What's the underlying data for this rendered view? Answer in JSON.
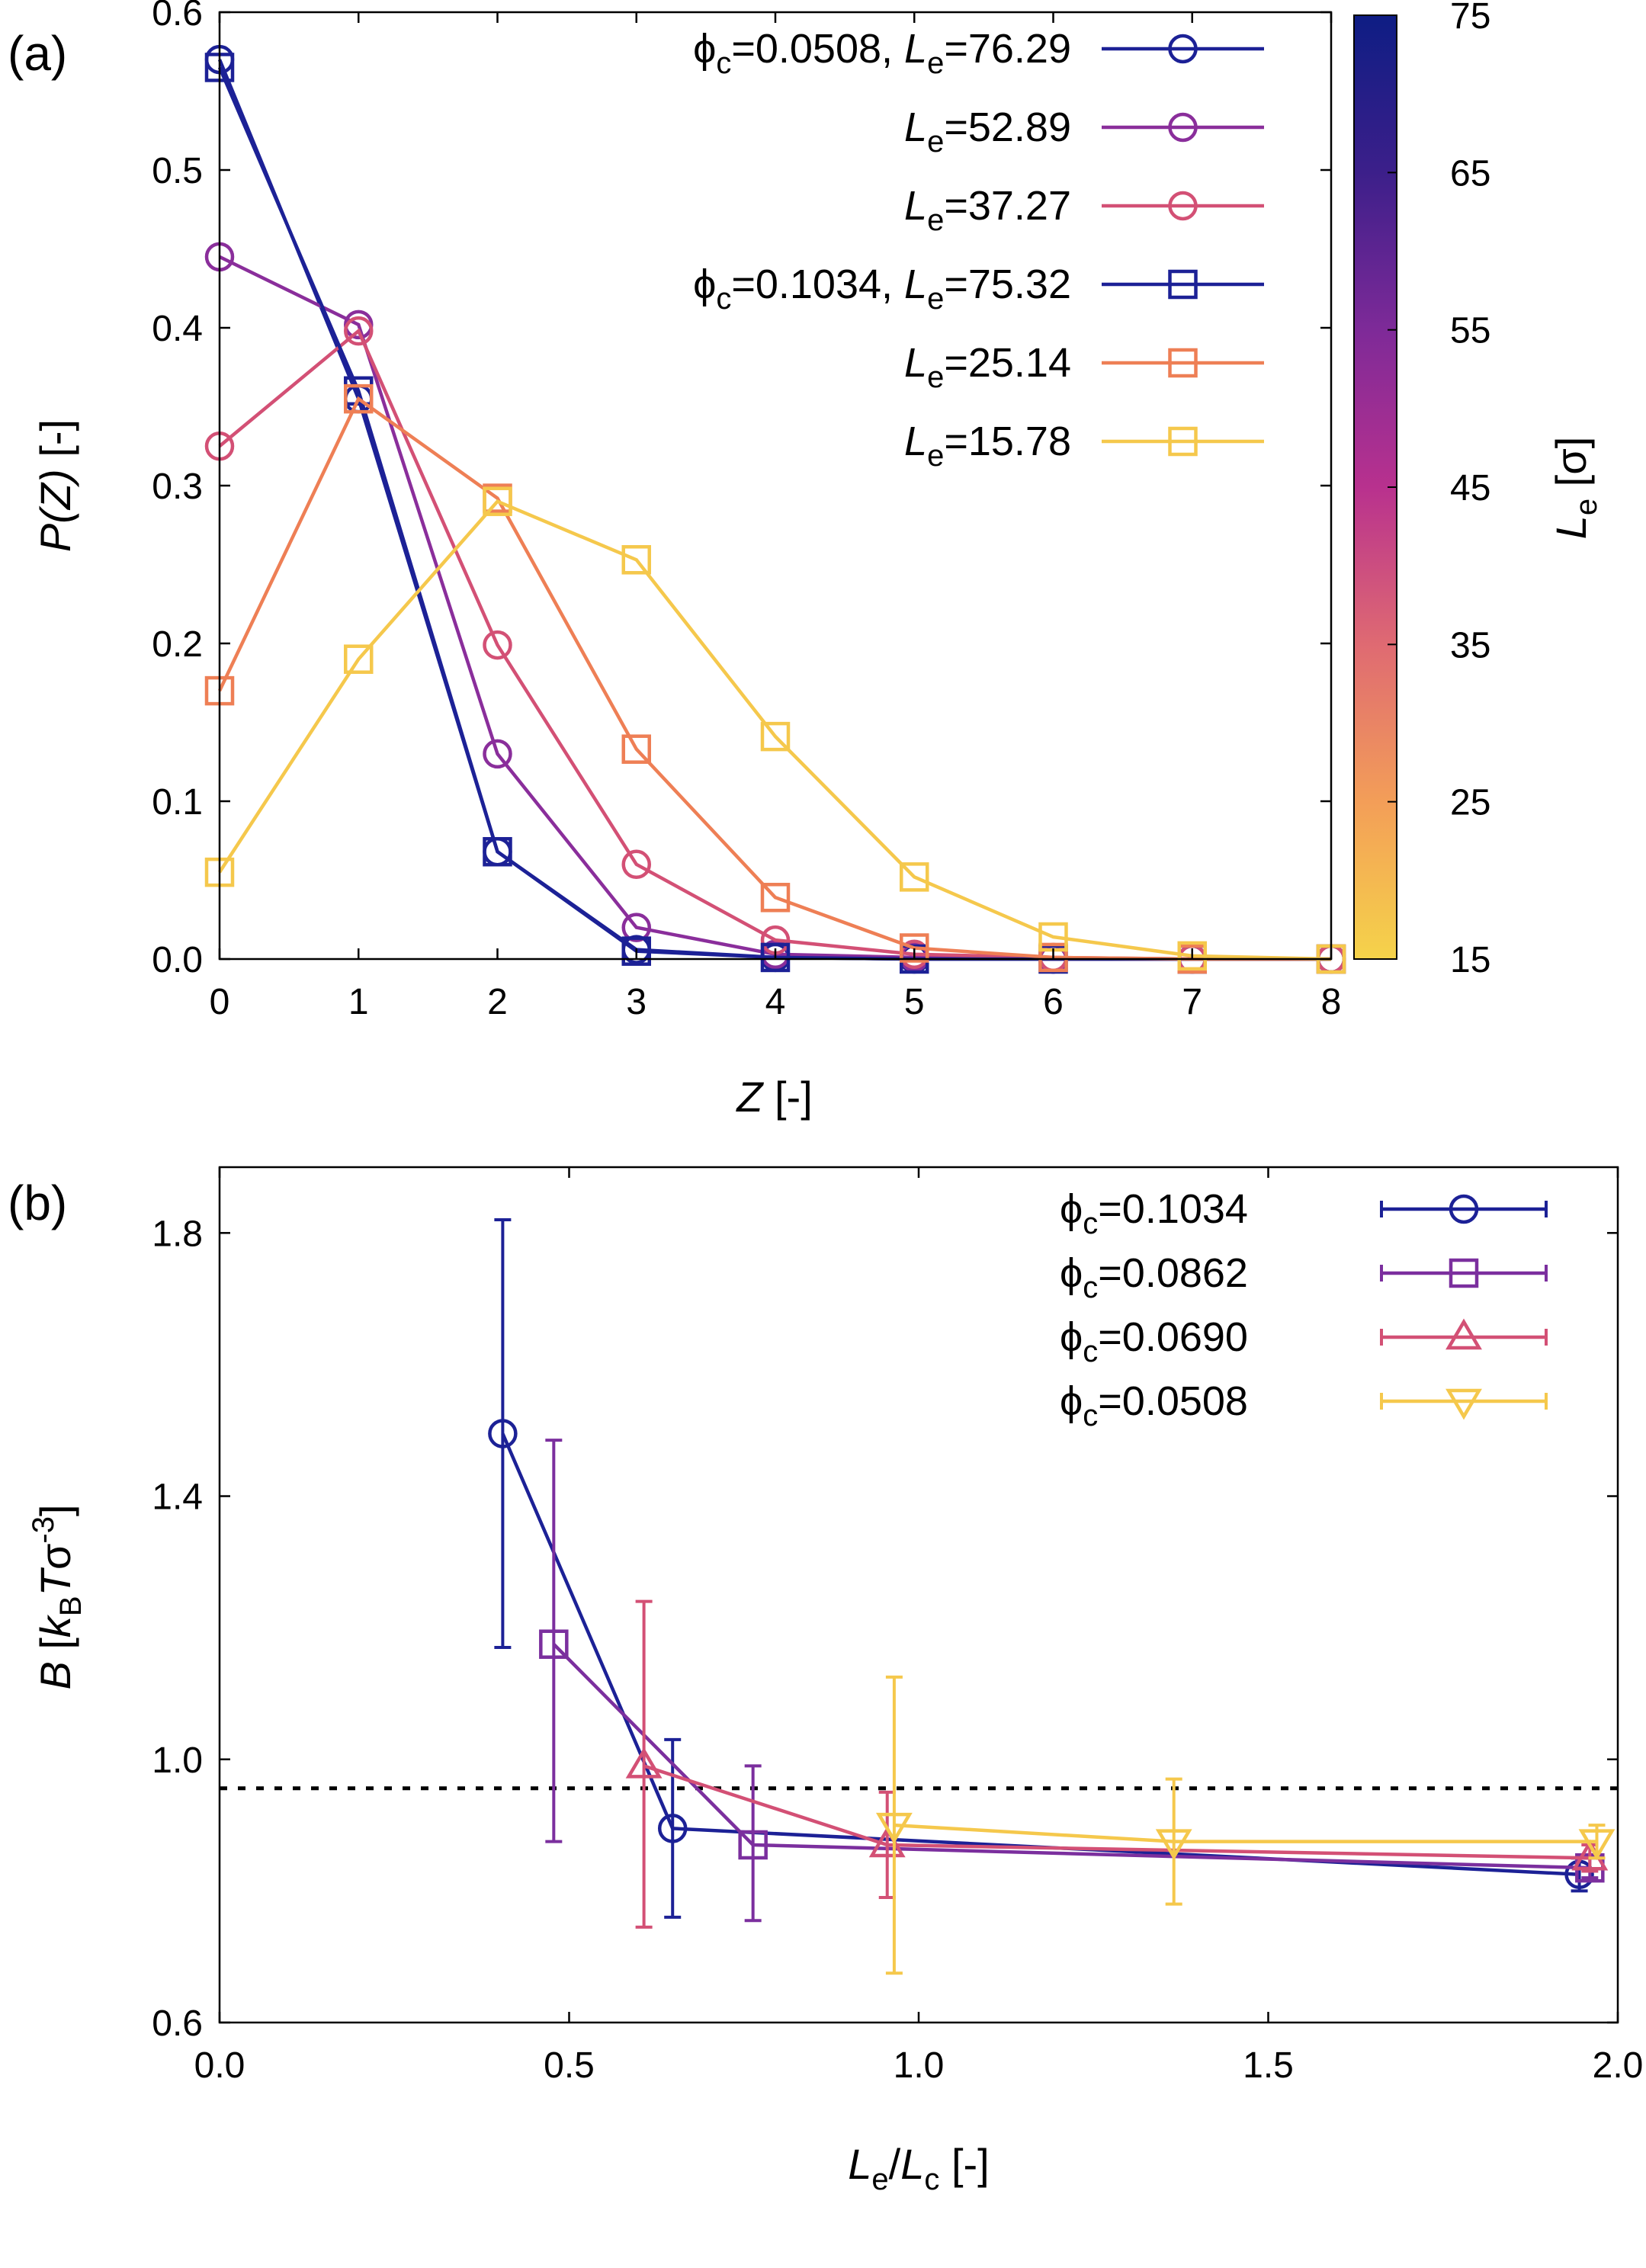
{
  "chart_data": [
    {
      "type": "line",
      "panel_label": "(a)",
      "xlabel_main": "Z",
      "xlabel_unit": " [-]",
      "ylabel_main": "P(Z)",
      "ylabel_unit": " [-]",
      "xlim": [
        0,
        8
      ],
      "ylim": [
        0,
        0.6
      ],
      "xticks": [
        0,
        1,
        2,
        3,
        4,
        5,
        6,
        7,
        8
      ],
      "yticks": [
        0.0,
        0.1,
        0.2,
        0.3,
        0.4,
        0.5,
        0.6
      ],
      "ytick_labels": [
        "0.0",
        "0.1",
        "0.2",
        "0.3",
        "0.4",
        "0.5",
        "0.6"
      ],
      "grid": false,
      "legend_position": "top-right",
      "colorbar": {
        "label_main": "L",
        "label_sub": "e",
        "label_unit": " [σ]",
        "range": [
          15,
          75
        ],
        "ticks": [
          15,
          25,
          35,
          45,
          55,
          65,
          75
        ],
        "colors": [
          "#f5d34a",
          "#f39e58",
          "#df6a72",
          "#b8318e",
          "#7e2a98",
          "#3c1f8a",
          "#0e1d84"
        ]
      },
      "series": [
        {
          "name": "φc=0.0508, Le=76.29",
          "prefix": "ϕ",
          "prefix_sub": "c",
          "prefix_rest": "=0.0508, ",
          "le": "=76.29",
          "marker": "circle",
          "color": "#1c2196",
          "x": [
            0,
            1,
            2,
            3,
            4,
            5,
            6,
            7,
            8
          ],
          "values": [
            0.57,
            0.355,
            0.068,
            0.006,
            0.001,
            0.0,
            0.0,
            0.0,
            0.0
          ]
        },
        {
          "name": "Le=52.89",
          "le": "=52.89",
          "marker": "circle",
          "color": "#8a2e9b",
          "x": [
            0,
            1,
            2,
            3,
            4,
            5,
            6,
            7,
            8
          ],
          "values": [
            0.445,
            0.402,
            0.13,
            0.02,
            0.003,
            0.001,
            0.0,
            0.0,
            0.0
          ]
        },
        {
          "name": "Le=37.27",
          "le": "=37.27",
          "marker": "circle",
          "color": "#d35075",
          "x": [
            0,
            1,
            2,
            3,
            4,
            5,
            6,
            7,
            8
          ],
          "values": [
            0.325,
            0.398,
            0.199,
            0.06,
            0.012,
            0.003,
            0.001,
            0.0,
            0.0
          ]
        },
        {
          "name": "φc=0.1034, Le=75.32",
          "prefix": "ϕ",
          "prefix_sub": "c",
          "prefix_rest": "=0.1034, ",
          "le": "=75.32",
          "marker": "square",
          "color": "#1c2196",
          "x": [
            0,
            1,
            2,
            3,
            4,
            5,
            6,
            7,
            8
          ],
          "values": [
            0.565,
            0.36,
            0.068,
            0.005,
            0.001,
            0.0,
            0.0,
            0.0,
            0.0
          ]
        },
        {
          "name": "Le=25.14",
          "le": "=25.14",
          "marker": "square",
          "color": "#ee7f55",
          "x": [
            0,
            1,
            2,
            3,
            4,
            5,
            6,
            7,
            8
          ],
          "values": [
            0.17,
            0.355,
            0.292,
            0.133,
            0.039,
            0.007,
            0.001,
            0.0,
            0.0
          ]
        },
        {
          "name": "Le=15.78",
          "le": "=15.78",
          "marker": "square",
          "color": "#f5c84c",
          "x": [
            0,
            1,
            2,
            3,
            4,
            5,
            6,
            7,
            8
          ],
          "values": [
            0.055,
            0.19,
            0.29,
            0.253,
            0.141,
            0.052,
            0.014,
            0.002,
            0.0
          ]
        }
      ]
    },
    {
      "type": "line",
      "panel_label": "(b)",
      "xlabel": "Le/Lc [-]",
      "ylabel": "B [kB T σ^-3]",
      "xlim": [
        0,
        2
      ],
      "ylim": [
        0.6,
        1.9
      ],
      "xticks": [
        0.0,
        0.5,
        1.0,
        1.5,
        2.0
      ],
      "xtick_labels": [
        "0.0",
        "0.5",
        "1.0",
        "1.5",
        "2.0"
      ],
      "yticks": [
        0.6,
        1.0,
        1.4,
        1.8
      ],
      "ytick_labels": [
        "0.6",
        "1.0",
        "1.4",
        "1.8"
      ],
      "grid": false,
      "legend_position": "top-right",
      "reference_line": {
        "y": 0.956,
        "style": "dotted",
        "color": "#000000"
      },
      "series": [
        {
          "name": "φc=0.1034",
          "value_text": "=0.1034",
          "marker": "circle",
          "color": "#1c2196",
          "x": [
            0.405,
            0.648,
            1.945
          ],
          "values": [
            1.495,
            0.895,
            0.825
          ],
          "err": [
            [
              1.17,
              1.82
            ],
            [
              0.76,
              1.03
            ],
            [
              0.8,
              0.85
            ]
          ]
        },
        {
          "name": "φc=0.0862",
          "value_text": "=0.0862",
          "marker": "square",
          "color": "#7b2f9e",
          "x": [
            0.478,
            0.763,
            1.96
          ],
          "values": [
            1.175,
            0.87,
            0.835
          ],
          "err": [
            [
              0.875,
              1.485
            ],
            [
              0.755,
              0.99
            ],
            [
              0.82,
              0.85
            ]
          ]
        },
        {
          "name": "φc=0.0690",
          "value_text": "=0.0690",
          "marker": "triangle-up",
          "color": "#d35075",
          "x": [
            0.607,
            0.955,
            1.96
          ],
          "values": [
            0.99,
            0.87,
            0.85
          ],
          "err": [
            [
              0.745,
              1.24
            ],
            [
              0.79,
              0.95
            ],
            [
              0.83,
              0.87
            ]
          ]
        },
        {
          "name": "φc=0.0508",
          "value_text": "=0.0508",
          "marker": "triangle-down",
          "color": "#f5c84c",
          "x": [
            0.965,
            1.365,
            1.97
          ],
          "values": [
            0.9,
            0.875,
            0.875
          ],
          "err": [
            [
              0.675,
              1.125
            ],
            [
              0.78,
              0.97
            ],
            [
              0.85,
              0.9
            ]
          ]
        }
      ]
    }
  ]
}
